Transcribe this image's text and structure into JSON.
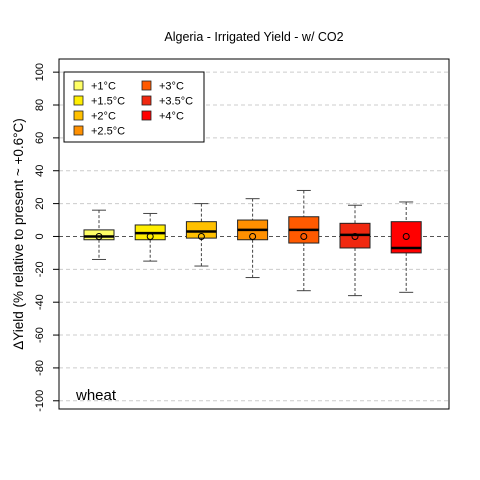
{
  "chart_data": {
    "type": "box",
    "title": "Algeria - Irrigated Yield - w/ CO2",
    "ylabel": "ΔYield (% relative to present ~ +0.6°C)",
    "crop_label": "wheat",
    "ylim": [
      -105,
      108
    ],
    "yticks": [
      100,
      80,
      60,
      40,
      20,
      0,
      -20,
      -40,
      -60,
      -80,
      -100
    ],
    "grid": "horizontal-dashed",
    "legend_position": "top-left",
    "series": [
      {
        "name": "+1°C",
        "color": "#FFFF66",
        "whisker_low": -14,
        "q1": -2,
        "median": 0,
        "q3": 4,
        "whisker_high": 16,
        "mean": 0
      },
      {
        "name": "+1.5°C",
        "color": "#FFEE00",
        "whisker_low": -15,
        "q1": -2,
        "median": 2,
        "q3": 7,
        "whisker_high": 14,
        "mean": 0
      },
      {
        "name": "+2°C",
        "color": "#FFC000",
        "whisker_low": -18,
        "q1": -1,
        "median": 3,
        "q3": 9,
        "whisker_high": 20,
        "mean": 0
      },
      {
        "name": "+2.5°C",
        "color": "#FF9000",
        "whisker_low": -25,
        "q1": -2,
        "median": 4,
        "q3": 10,
        "whisker_high": 23,
        "mean": 0
      },
      {
        "name": "+3°C",
        "color": "#FF5A00",
        "whisker_low": -33,
        "q1": -4,
        "median": 4,
        "q3": 12,
        "whisker_high": 28,
        "mean": 0
      },
      {
        "name": "+3.5°C",
        "color": "#F02810",
        "whisker_low": -36,
        "q1": -7,
        "median": 1,
        "q3": 8,
        "whisker_high": 19,
        "mean": 0
      },
      {
        "name": "+4°C",
        "color": "#FF0000",
        "whisker_low": -34,
        "q1": -10,
        "median": -7,
        "q3": 9,
        "whisker_high": 21,
        "mean": 0
      }
    ]
  }
}
